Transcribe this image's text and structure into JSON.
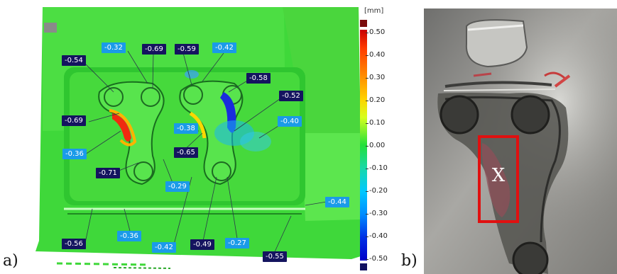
{
  "panels": {
    "left_letter": "a)",
    "right_letter": "b)"
  },
  "scale": {
    "unit": "[mm]",
    "ticks": [
      "0.50",
      "0.40",
      "0.30",
      "0.20",
      "0.10",
      "0.00",
      "-0.10",
      "-0.20",
      "-0.30",
      "-0.40",
      "-0.50"
    ]
  },
  "annotations": [
    {
      "text": "-0.54",
      "style": "dark"
    },
    {
      "text": "-0.32",
      "style": "light"
    },
    {
      "text": "-0.69",
      "style": "dark"
    },
    {
      "text": "-0.59",
      "style": "dark"
    },
    {
      "text": "-0.42",
      "style": "light"
    },
    {
      "text": "-0.58",
      "style": "dark"
    },
    {
      "text": "-0.52",
      "style": "dark"
    },
    {
      "text": "-0.69",
      "style": "dark"
    },
    {
      "text": "-0.38",
      "style": "light"
    },
    {
      "text": "-0.40",
      "style": "light"
    },
    {
      "text": "-0.36",
      "style": "light"
    },
    {
      "text": "-0.65",
      "style": "dark"
    },
    {
      "text": "-0.71",
      "style": "dark"
    },
    {
      "text": "-0.29",
      "style": "light"
    },
    {
      "text": "-0.44",
      "style": "light"
    },
    {
      "text": "-0.56",
      "style": "dark"
    },
    {
      "text": "-0.36",
      "style": "light"
    },
    {
      "text": "-0.42",
      "style": "light"
    },
    {
      "text": "-0.49",
      "style": "dark"
    },
    {
      "text": "-0.27",
      "style": "light"
    },
    {
      "text": "-0.55",
      "style": "dark"
    }
  ],
  "photo": {
    "marker_label": "X"
  },
  "colors": {
    "scan_green": "#3fd83a",
    "marker_red": "#e01010",
    "badge_dark": "#14145f",
    "badge_light": "#1a9be8"
  }
}
